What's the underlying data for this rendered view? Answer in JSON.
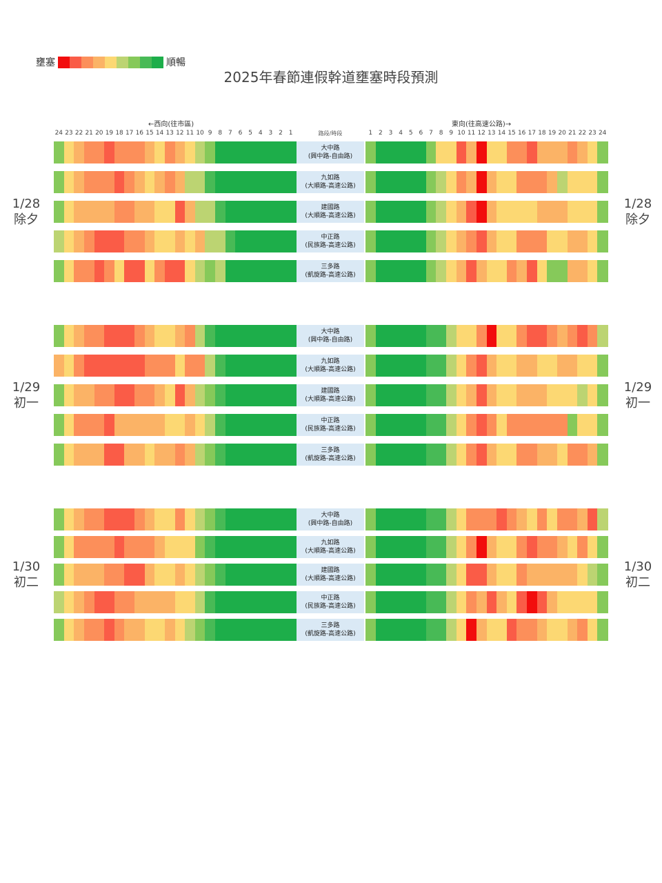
{
  "legend": {
    "left_label": "壅塞",
    "right_label": "順暢"
  },
  "title": "2025年春節連假幹道壅塞時段預測",
  "header": {
    "west_label": "←西向(往市區)",
    "east_label": "東向(往高速公路)→",
    "center_label": "路段/時段"
  },
  "palette": {
    "R": "#f20d0d",
    "r": "#fa5c47",
    "o": "#fc8f5a",
    "l": "#fbb366",
    "y": "#fcd873",
    "g": "#bcd472",
    "m": "#86c95a",
    "G": "#48ba56",
    "D": "#1dae4a"
  },
  "chart_data": {
    "type": "heatmap",
    "title": "2025年春節連假幹道壅塞時段預測",
    "scale": "R=壅塞(最嚴重) … D=順暢; codes R,r,o,l,y,g,m,G,D",
    "west_hours": [
      "24",
      "23",
      "22",
      "21",
      "20",
      "19",
      "18",
      "17",
      "16",
      "15",
      "14",
      "13",
      "12",
      "11",
      "10",
      "9",
      "8",
      "7",
      "6",
      "5",
      "4",
      "3",
      "2",
      "1"
    ],
    "east_hours": [
      "1",
      "2",
      "3",
      "4",
      "5",
      "6",
      "7",
      "8",
      "9",
      "10",
      "11",
      "12",
      "13",
      "14",
      "15",
      "16",
      "17",
      "18",
      "19",
      "20",
      "21",
      "22",
      "23",
      "24"
    ],
    "days": [
      {
        "date": "1/28",
        "label": "除夕",
        "roads": [
          {
            "name": "大中路",
            "segment": "(興中路-自由路)",
            "west": "myloorooolyolygmDDDDDDDD",
            "east": "mDDDDDmyyrlRyyoorlllolym"
          },
          {
            "name": "九如路",
            "segment": "(大順路-高速公路)",
            "west": "mylooorolylolggGDDDDDDDD",
            "east": "mDDDDDmgyolRlyyooolgyyym"
          },
          {
            "name": "建國路",
            "segment": "(大順路-高速公路)",
            "west": "mylllloollyyrlggGDDDDDDD",
            "east": "mDDDDDmgylrRlyyyylllyyym"
          },
          {
            "name": "中正路",
            "segment": "(民族路-高速公路)",
            "west": "gylorrroolyylylggGDDDDDD",
            "east": "mDDDDDmgylorlyyoooyyllym"
          },
          {
            "name": "三多路",
            "segment": "(凱旋路-高速公路)",
            "west": "myooroyrryorrygmgDDDDDDD",
            "east": "mDDDDDmgylrlyyolrymmllym"
          }
        ]
      },
      {
        "date": "1/29",
        "label": "初一",
        "roads": [
          {
            "name": "大中路",
            "segment": "(興中路-自由路)",
            "west": "myloorrrolyylogGDDDDDDDD",
            "east": "mDDDDDGGgyyoRyyorrolorog"
          },
          {
            "name": "九如路",
            "segment": "(大順路-高速公路)",
            "west": "lyorrrrrroooyoogGDDDDDDD",
            "east": "mDDDDDGGgyorlyyllyyllyym"
          },
          {
            "name": "建國路",
            "segment": "(大順路-高速公路)",
            "west": "mylloorroolyrlgmGDDDDDDD",
            "east": "mDDDDDGGgylrlyylllyyygym"
          },
          {
            "name": "中正路",
            "segment": "(民族路-高速公路)",
            "west": "myooorlllllyylygGDDDDDDD",
            "east": "mDDDDDGGgyoroyoooooomyym"
          },
          {
            "name": "三多路",
            "segment": "(凱旋路-高速公路)",
            "west": "mylllrrllyllolgmGDDDDDDD",
            "east": "mDDDDDGGgyorlyyoollyoolm"
          }
        ]
      },
      {
        "date": "1/30",
        "label": "初二",
        "roads": [
          {
            "name": "大中路",
            "segment": "(興中路-自由路)",
            "west": "myloorrrolyyoygmGDDDDDDD",
            "east": "mDDDDDGGgyooorolyoyoolrg"
          },
          {
            "name": "九如路",
            "segment": "(大順路-高速公路)",
            "west": "myoooorooolyyymGDDDDDDDD",
            "east": "mDDDDDGGgyoRlyyoroolyoym"
          },
          {
            "name": "建國路",
            "segment": "(大順路-高速公路)",
            "west": "myllloorrlyylygmGDDDDDDD",
            "east": "mDDDDDGGgyrrlyyolllllygm"
          },
          {
            "name": "中正路",
            "segment": "(民族路-高速公路)",
            "west": "gylorroollllyygGDDDDDDDD",
            "east": "mDDDDDGGgyolrlyrRrlyyyym"
          },
          {
            "name": "三多路",
            "segment": "(凱旋路-高速公路)",
            "west": "myloorollyylygmGDDDDDDDD",
            "east": "mDDDDDGGgyRlyyroolyyloym"
          }
        ]
      }
    ]
  }
}
